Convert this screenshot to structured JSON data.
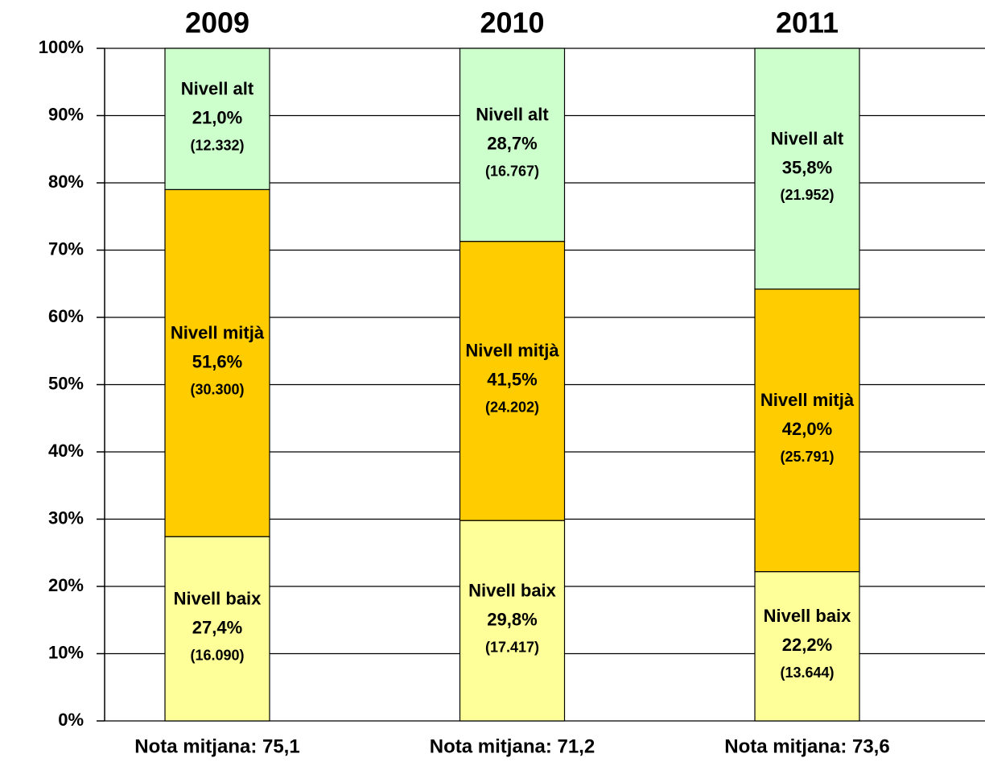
{
  "chart_data": {
    "type": "stacked_bar",
    "categories": [
      "2009",
      "2010",
      "2011"
    ],
    "category_notes": [
      "Nota mitjana: 75,1",
      "Nota mitjana: 71,2",
      "Nota mitjana: 73,6"
    ],
    "series": [
      {
        "name": "Nivell baix",
        "color": "#ffff99",
        "values": [
          27.4,
          29.8,
          22.2
        ],
        "value_labels": [
          "27,4%",
          "29,8%",
          "22,2%"
        ],
        "counts": [
          16090,
          17417,
          13644
        ],
        "count_labels": [
          "(16.090)",
          "(17.417)",
          "(13.644)"
        ]
      },
      {
        "name": "Nivell mitjà",
        "color": "#ffcc00",
        "values": [
          51.6,
          41.5,
          42.0
        ],
        "value_labels": [
          "51,6%",
          "41,5%",
          "42,0%"
        ],
        "counts": [
          30300,
          24202,
          25791
        ],
        "count_labels": [
          "(30.300)",
          "(24.202)",
          "(25.791)"
        ]
      },
      {
        "name": "Nivell alt",
        "color": "#ccffcc",
        "values": [
          21.0,
          28.7,
          35.8
        ],
        "value_labels": [
          "21,0%",
          "28,7%",
          "35,8%"
        ],
        "counts": [
          12332,
          16767,
          21952
        ],
        "count_labels": [
          "(12.332)",
          "(16.767)",
          "(21.952)"
        ]
      }
    ],
    "ylim": [
      0,
      100
    ],
    "yticks": [
      {
        "value": 0,
        "label": "0%"
      },
      {
        "value": 10,
        "label": "10%"
      },
      {
        "value": 20,
        "label": "20%"
      },
      {
        "value": 30,
        "label": "30%"
      },
      {
        "value": 40,
        "label": "40%"
      },
      {
        "value": 50,
        "label": "50%"
      },
      {
        "value": 60,
        "label": "60%"
      },
      {
        "value": 70,
        "label": "70%"
      },
      {
        "value": 80,
        "label": "80%"
      },
      {
        "value": 90,
        "label": "90%"
      },
      {
        "value": 100,
        "label": "100%"
      }
    ],
    "grid": true
  }
}
